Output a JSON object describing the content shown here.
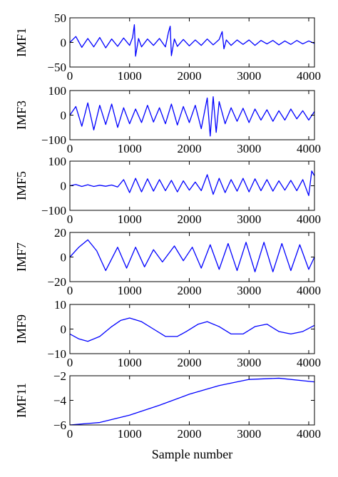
{
  "chart_data": [
    {
      "type": "line",
      "ylabel": "IMF1",
      "xlabel": "",
      "xlim": [
        0,
        4096
      ],
      "ylim": [
        -50,
        50
      ],
      "xticks": [
        "0",
        "1000",
        "2000",
        "3000",
        "4000"
      ],
      "yticks": [
        "50",
        "0",
        "−50"
      ],
      "series": [
        {
          "color": "#0000ff",
          "x": [
            0,
            100,
            200,
            300,
            400,
            500,
            600,
            700,
            800,
            900,
            1000,
            1050,
            1080,
            1100,
            1150,
            1200,
            1300,
            1400,
            1500,
            1600,
            1650,
            1680,
            1700,
            1750,
            1800,
            1900,
            2000,
            2100,
            2200,
            2300,
            2400,
            2500,
            2550,
            2580,
            2620,
            2700,
            2800,
            2900,
            3000,
            3100,
            3200,
            3300,
            3400,
            3500,
            3600,
            3700,
            3800,
            3900,
            4000,
            4096
          ],
          "y": [
            0,
            12,
            -10,
            8,
            -9,
            10,
            -11,
            7,
            -8,
            9,
            -6,
            10,
            36,
            -28,
            8,
            -9,
            7,
            -6,
            8,
            -9,
            20,
            33,
            -27,
            7,
            -8,
            6,
            -7,
            5,
            -6,
            7,
            -5,
            6,
            22,
            -13,
            5,
            -6,
            5,
            -4,
            5,
            -6,
            4,
            -3,
            4,
            -5,
            3,
            -4,
            4,
            -3,
            3,
            -2
          ]
        }
      ]
    },
    {
      "type": "line",
      "ylabel": "IMF3",
      "xlabel": "",
      "xlim": [
        0,
        4096
      ],
      "ylim": [
        -100,
        100
      ],
      "xticks": [
        "0",
        "1000",
        "2000",
        "3000",
        "4000"
      ],
      "yticks": [
        "100",
        "0",
        "−100"
      ],
      "series": [
        {
          "color": "#0000ff",
          "x": [
            0,
            100,
            200,
            300,
            400,
            500,
            600,
            700,
            800,
            900,
            1000,
            1100,
            1200,
            1300,
            1400,
            1500,
            1600,
            1700,
            1800,
            1900,
            2000,
            2100,
            2200,
            2300,
            2350,
            2400,
            2450,
            2500,
            2600,
            2700,
            2800,
            2900,
            3000,
            3100,
            3200,
            3300,
            3400,
            3500,
            3600,
            3700,
            3800,
            3900,
            4000,
            4096
          ],
          "y": [
            0,
            35,
            -45,
            50,
            -60,
            40,
            -38,
            45,
            -50,
            30,
            -35,
            25,
            -30,
            40,
            -28,
            30,
            -35,
            45,
            -40,
            35,
            -30,
            40,
            -55,
            70,
            -85,
            75,
            -70,
            55,
            -35,
            30,
            -25,
            28,
            -30,
            25,
            -20,
            22,
            -25,
            18,
            -20,
            25,
            -15,
            18,
            -20,
            15
          ]
        }
      ]
    },
    {
      "type": "line",
      "ylabel": "IMF5",
      "xlabel": "",
      "xlim": [
        0,
        4096
      ],
      "ylim": [
        -100,
        100
      ],
      "xticks": [
        "0",
        "1000",
        "2000",
        "3000",
        "4000"
      ],
      "yticks": [
        "100",
        "0",
        "−100"
      ],
      "series": [
        {
          "color": "#0000ff",
          "x": [
            0,
            100,
            200,
            300,
            400,
            500,
            600,
            700,
            800,
            900,
            1000,
            1100,
            1200,
            1300,
            1400,
            1500,
            1600,
            1700,
            1800,
            1900,
            2000,
            2100,
            2200,
            2300,
            2400,
            2500,
            2600,
            2700,
            2800,
            2900,
            3000,
            3100,
            3200,
            3300,
            3400,
            3500,
            3600,
            3700,
            3800,
            3900,
            4000,
            4050,
            4096
          ],
          "y": [
            0,
            5,
            -3,
            4,
            -3,
            2,
            -2,
            3,
            -5,
            25,
            -28,
            30,
            -25,
            28,
            -22,
            25,
            -20,
            22,
            -25,
            20,
            -18,
            15,
            -20,
            45,
            -35,
            30,
            -28,
            25,
            -22,
            30,
            -25,
            28,
            -20,
            25,
            -22,
            20,
            -18,
            22,
            -20,
            25,
            -40,
            60,
            40
          ]
        }
      ]
    },
    {
      "type": "line",
      "ylabel": "IMF7",
      "xlabel": "",
      "xlim": [
        0,
        4096
      ],
      "ylim": [
        -20,
        20
      ],
      "xticks": [
        "0",
        "1000",
        "2000",
        "3000",
        "4000"
      ],
      "yticks": [
        "20",
        "0",
        "−20"
      ],
      "series": [
        {
          "color": "#0000ff",
          "x": [
            0,
            150,
            300,
            450,
            600,
            800,
            950,
            1100,
            1250,
            1400,
            1550,
            1750,
            1900,
            2050,
            2200,
            2350,
            2500,
            2650,
            2800,
            2950,
            3100,
            3250,
            3400,
            3550,
            3700,
            3850,
            4000,
            4096
          ],
          "y": [
            0,
            8,
            14,
            5,
            -11,
            8,
            -9,
            8,
            -8,
            6,
            -4,
            9,
            -3,
            8,
            -9,
            10,
            -10,
            11,
            -11,
            12,
            -12,
            12,
            -12,
            11,
            -11,
            10,
            -10,
            0
          ]
        }
      ]
    },
    {
      "type": "line",
      "ylabel": "IMF9",
      "xlabel": "",
      "xlim": [
        0,
        4096
      ],
      "ylim": [
        -10,
        10
      ],
      "xticks": [
        "0",
        "1000",
        "2000",
        "3000",
        "4000"
      ],
      "yticks": [
        "10",
        "0",
        "−10"
      ],
      "series": [
        {
          "color": "#0000ff",
          "x": [
            0,
            150,
            300,
            500,
            700,
            850,
            1000,
            1200,
            1400,
            1600,
            1800,
            1950,
            2150,
            2300,
            2500,
            2700,
            2900,
            3100,
            3300,
            3500,
            3700,
            3900,
            4096
          ],
          "y": [
            -2,
            -4,
            -5,
            -3,
            1,
            3.5,
            4.5,
            3,
            0,
            -3,
            -3,
            -1,
            2,
            3,
            1,
            -2,
            -2,
            1,
            2,
            -1,
            -2,
            -1,
            1.5
          ]
        }
      ]
    },
    {
      "type": "line",
      "ylabel": "IMF11",
      "xlabel": "Sample number",
      "xlim": [
        0,
        4096
      ],
      "ylim": [
        -6,
        -2
      ],
      "xticks": [
        "0",
        "1000",
        "2000",
        "3000",
        "4000"
      ],
      "yticks": [
        "−2",
        "−4",
        "−6"
      ],
      "series": [
        {
          "color": "#0000ff",
          "x": [
            0,
            500,
            1000,
            1500,
            2000,
            2500,
            3000,
            3500,
            4096
          ],
          "y": [
            -6,
            -5.8,
            -5.2,
            -4.4,
            -3.5,
            -2.8,
            -2.3,
            -2.2,
            -2.5
          ]
        }
      ]
    }
  ]
}
